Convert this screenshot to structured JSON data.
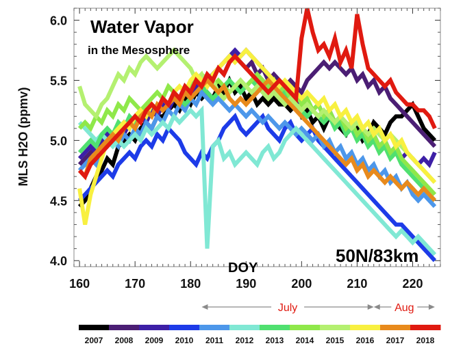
{
  "chart_data": {
    "type": "line",
    "title": "Water Vapor",
    "subtitle": "in the Mesosphere",
    "xlabel": "DOY",
    "ylabel": "MLS H2O (ppmv)",
    "location_label": "50N/83km",
    "xlim": [
      159,
      225
    ],
    "ylim": [
      3.95,
      6.1
    ],
    "xticks": [
      160,
      170,
      180,
      190,
      200,
      210,
      220
    ],
    "yticks": [
      4.0,
      4.5,
      5.0,
      5.5,
      6.0
    ],
    "ytick_labels": [
      "4.0",
      "4.5",
      "5.0",
      "5.5",
      "6.0"
    ],
    "month_annotations": [
      {
        "label": "July",
        "x_start": 182,
        "x_end": 213,
        "color": "#e01a10"
      },
      {
        "label": "Aug",
        "x_start": 213,
        "x_end": 224,
        "color": "#e01a10"
      }
    ],
    "series": [
      {
        "name": "2007",
        "color": "#000000",
        "x_start": 160,
        "x_end": 224,
        "values": [
          4.45,
          4.5,
          4.6,
          4.7,
          4.75,
          4.85,
          4.8,
          4.95,
          5.0,
          5.05,
          5.0,
          5.1,
          5.15,
          5.1,
          5.2,
          5.2,
          5.25,
          5.3,
          5.25,
          5.35,
          5.3,
          5.4,
          5.35,
          5.4,
          5.35,
          5.45,
          5.4,
          5.5,
          5.4,
          5.45,
          5.35,
          5.4,
          5.3,
          5.35,
          5.3,
          5.35,
          5.3,
          5.3,
          5.25,
          5.3,
          5.2,
          5.25,
          5.15,
          5.2,
          5.1,
          5.2,
          5.15,
          5.1,
          5.05,
          5.15,
          5.1,
          5.0,
          5.05,
          5.15,
          5.1,
          5.05,
          5.15,
          5.2,
          5.2,
          5.25,
          5.3,
          5.2,
          5.1,
          5.05,
          5.0
        ]
      },
      {
        "name": "2008",
        "color": "#4b1e74",
        "x_start": 160,
        "x_end": 224,
        "values": [
          4.8,
          4.85,
          4.9,
          4.95,
          5.0,
          5.05,
          5.0,
          5.1,
          5.15,
          5.1,
          5.2,
          5.25,
          5.2,
          5.3,
          5.25,
          5.35,
          5.3,
          5.4,
          5.35,
          5.45,
          5.4,
          5.5,
          5.45,
          5.5,
          5.55,
          5.6,
          5.55,
          5.65,
          5.7,
          5.65,
          5.6,
          5.65,
          5.55,
          5.6,
          5.5,
          5.55,
          5.5,
          5.45,
          5.5,
          5.45,
          5.4,
          5.5,
          5.55,
          5.6,
          5.65,
          5.6,
          5.65,
          5.6,
          5.55,
          5.6,
          5.5,
          5.55,
          5.45,
          5.5,
          5.4,
          5.45,
          5.35,
          5.3,
          5.25,
          5.2,
          5.15,
          5.1,
          5.05,
          5.0,
          4.95
        ]
      },
      {
        "name": "2009",
        "color": "#3d1fa6",
        "x_start": 160,
        "x_end": 224,
        "values": [
          4.85,
          4.9,
          4.95,
          4.9,
          5.0,
          5.05,
          5.0,
          5.1,
          5.05,
          5.15,
          5.1,
          5.2,
          5.15,
          5.25,
          5.2,
          5.3,
          5.25,
          5.35,
          5.3,
          5.4,
          5.35,
          5.45,
          5.4,
          5.5,
          5.55,
          5.6,
          5.65,
          5.7,
          5.75,
          5.7,
          5.75,
          5.7,
          5.65,
          5.6,
          5.55,
          5.5,
          5.45,
          5.4,
          5.35,
          5.3,
          5.35,
          5.3,
          5.25,
          5.3,
          5.2,
          5.25,
          5.15,
          5.2,
          5.1,
          5.15,
          5.05,
          5.1,
          5.0,
          5.05,
          4.95,
          5.0,
          4.9,
          4.95,
          4.85,
          4.9,
          4.85,
          4.8,
          4.85,
          4.8,
          4.9
        ]
      },
      {
        "name": "2010",
        "color": "#1d3be8",
        "x_start": 160,
        "x_end": 224,
        "values": [
          4.5,
          4.55,
          4.6,
          4.65,
          4.7,
          4.75,
          4.7,
          4.8,
          4.85,
          4.9,
          4.85,
          4.95,
          5.0,
          4.95,
          5.05,
          5.0,
          5.1,
          5.05,
          5.0,
          4.9,
          4.85,
          4.8,
          4.9,
          4.85,
          4.95,
          5.0,
          5.1,
          5.15,
          5.2,
          5.1,
          5.05,
          5.1,
          5.15,
          5.2,
          5.1,
          5.05,
          5.0,
          5.1,
          5.15,
          5.05,
          5.0,
          5.05,
          5.1,
          5.0,
          4.95,
          4.9,
          4.85,
          4.8,
          4.75,
          4.7,
          4.65,
          4.6,
          4.55,
          4.5,
          4.45,
          4.4,
          4.35,
          4.3,
          4.3,
          4.25,
          4.2,
          4.15,
          4.1,
          4.05,
          4.0
        ]
      },
      {
        "name": "2011",
        "color": "#4d97ea",
        "x_start": 160,
        "x_end": 224,
        "values": [
          4.75,
          4.8,
          4.85,
          4.8,
          4.9,
          4.95,
          5.0,
          4.95,
          5.05,
          5.0,
          5.1,
          5.05,
          5.15,
          5.1,
          5.2,
          5.15,
          5.25,
          5.2,
          5.3,
          5.25,
          5.35,
          5.3,
          5.4,
          5.35,
          5.3,
          5.35,
          5.3,
          5.25,
          5.3,
          5.25,
          5.2,
          5.25,
          5.2,
          5.15,
          5.2,
          5.15,
          5.1,
          5.15,
          5.1,
          5.05,
          5.1,
          5.05,
          5.0,
          5.05,
          4.95,
          5.0,
          4.9,
          4.95,
          4.85,
          4.9,
          4.8,
          4.85,
          4.75,
          4.8,
          4.7,
          4.75,
          4.65,
          4.7,
          4.6,
          4.65,
          4.55,
          4.5,
          4.55,
          4.5,
          4.45
        ]
      },
      {
        "name": "2012",
        "color": "#80e8d4",
        "x_start": 160,
        "x_end": 224,
        "values": [
          5.15,
          5.1,
          5.05,
          5.0,
          5.05,
          5.0,
          4.95,
          5.0,
          4.95,
          5.0,
          5.05,
          5.0,
          5.1,
          5.05,
          5.1,
          5.15,
          5.1,
          5.2,
          5.15,
          5.2,
          5.25,
          5.2,
          5.25,
          4.1,
          4.95,
          5.0,
          4.85,
          4.9,
          4.8,
          4.85,
          4.9,
          4.85,
          4.8,
          4.9,
          4.95,
          4.85,
          4.9,
          5.0,
          5.05,
          5.1,
          5.05,
          5.0,
          4.95,
          4.9,
          4.85,
          4.8,
          4.75,
          4.7,
          4.65,
          4.6,
          4.55,
          4.5,
          4.45,
          4.4,
          4.35,
          4.3,
          4.25,
          4.2,
          4.25,
          4.2,
          4.15,
          4.2,
          4.15,
          4.1,
          4.05
        ]
      },
      {
        "name": "2013",
        "color": "#50e070",
        "x_start": 160,
        "x_end": 224,
        "values": [
          4.9,
          4.95,
          5.0,
          4.95,
          5.05,
          5.1,
          5.05,
          5.15,
          5.1,
          5.2,
          5.15,
          5.25,
          5.2,
          5.3,
          5.25,
          5.35,
          5.3,
          5.4,
          5.35,
          5.3,
          5.35,
          5.4,
          5.45,
          5.4,
          5.35,
          5.4,
          5.45,
          5.5,
          5.45,
          5.4,
          5.45,
          5.5,
          5.45,
          5.4,
          5.45,
          5.4,
          5.35,
          5.4,
          5.35,
          5.3,
          5.25,
          5.2,
          5.25,
          5.2,
          5.15,
          5.2,
          5.1,
          5.15,
          5.05,
          5.1,
          5.0,
          5.05,
          4.95,
          5.0,
          4.9,
          4.95,
          4.85,
          4.9,
          4.8,
          4.75,
          4.7,
          4.65,
          4.6,
          4.55,
          4.5
        ]
      },
      {
        "name": "2014",
        "color": "#8fe84a",
        "x_start": 160,
        "x_end": 224,
        "values": [
          5.1,
          5.15,
          5.1,
          5.2,
          5.15,
          5.25,
          5.2,
          5.3,
          5.25,
          5.35,
          5.3,
          5.25,
          5.3,
          5.35,
          5.4,
          5.35,
          5.45,
          5.4,
          5.35,
          5.4,
          5.45,
          5.5,
          5.55,
          5.5,
          5.45,
          5.5,
          5.45,
          5.4,
          5.45,
          5.5,
          5.45,
          5.5,
          5.55,
          5.5,
          5.45,
          5.5,
          5.4,
          5.45,
          5.35,
          5.4,
          5.3,
          5.35,
          5.25,
          5.3,
          5.2,
          5.25,
          5.15,
          5.2,
          5.1,
          5.15,
          5.05,
          5.1,
          5.0,
          5.05,
          4.95,
          5.0,
          4.9,
          4.95,
          4.85,
          4.8,
          4.75,
          4.7,
          4.65,
          4.6,
          4.55
        ]
      },
      {
        "name": "2015",
        "color": "#b4f070",
        "x_start": 160,
        "x_end": 224,
        "values": [
          5.45,
          5.3,
          5.25,
          5.2,
          5.3,
          5.35,
          5.45,
          5.55,
          5.5,
          5.6,
          5.55,
          5.65,
          5.7,
          5.65,
          5.6,
          5.65,
          5.7,
          5.75,
          5.7,
          5.65,
          5.6,
          5.5,
          5.55,
          5.45,
          5.5,
          5.4,
          5.35,
          5.4,
          5.45,
          5.5,
          5.45,
          5.4,
          5.45,
          5.4,
          5.35,
          5.4,
          5.35,
          5.3,
          5.35,
          5.3,
          5.25,
          5.3,
          5.25,
          5.2,
          5.25,
          5.2,
          5.15,
          5.2,
          5.15,
          5.1,
          5.15,
          5.1,
          5.05,
          5.1,
          5.05,
          5.0,
          5.05,
          5.0,
          4.95,
          4.9,
          4.85,
          4.8,
          4.75,
          4.7,
          4.65
        ]
      },
      {
        "name": "2016",
        "color": "#f8f040",
        "x_start": 160,
        "x_end": 224,
        "values": [
          4.6,
          4.3,
          4.55,
          4.7,
          4.85,
          5.0,
          5.05,
          5.1,
          5.15,
          5.1,
          5.2,
          5.25,
          5.2,
          5.3,
          5.25,
          5.35,
          5.3,
          5.4,
          5.45,
          5.4,
          5.5,
          5.55,
          5.5,
          5.45,
          5.55,
          5.6,
          5.65,
          5.7,
          5.65,
          5.7,
          5.75,
          5.7,
          5.65,
          5.6,
          5.55,
          5.5,
          5.45,
          5.5,
          5.45,
          5.4,
          5.35,
          5.4,
          5.35,
          5.3,
          5.35,
          5.25,
          5.3,
          5.2,
          5.25,
          5.15,
          5.2,
          5.1,
          5.15,
          5.05,
          5.1,
          5.0,
          5.05,
          4.95,
          5.0,
          4.9,
          4.85,
          4.8,
          4.75,
          4.7,
          4.65
        ]
      },
      {
        "name": "2017",
        "color": "#e88a1c",
        "x_start": 160,
        "x_end": 224,
        "values": [
          4.75,
          4.7,
          4.85,
          4.9,
          4.95,
          5.0,
          5.05,
          5.0,
          5.1,
          5.15,
          5.1,
          5.2,
          5.25,
          5.2,
          5.3,
          5.25,
          5.3,
          5.35,
          5.3,
          5.4,
          5.35,
          5.4,
          5.45,
          5.5,
          5.45,
          5.4,
          5.45,
          5.35,
          5.3,
          5.35,
          5.3,
          5.35,
          5.4,
          5.45,
          5.5,
          5.45,
          5.4,
          5.35,
          5.3,
          5.25,
          5.2,
          5.15,
          5.1,
          5.05,
          5.0,
          4.95,
          4.9,
          4.85,
          4.8,
          4.85,
          4.75,
          4.8,
          4.7,
          4.75,
          4.7,
          4.65,
          4.7,
          4.65,
          4.6,
          4.65,
          4.6,
          4.55,
          4.6,
          4.55,
          4.5
        ]
      },
      {
        "name": "2018",
        "color": "#e01a10",
        "x_start": 160,
        "x_end": 224,
        "values": [
          4.75,
          4.7,
          4.8,
          4.85,
          4.9,
          4.95,
          5.0,
          5.05,
          5.1,
          5.15,
          5.2,
          5.15,
          5.25,
          5.3,
          5.25,
          5.35,
          5.3,
          5.4,
          5.35,
          5.45,
          5.4,
          5.5,
          5.45,
          5.55,
          5.5,
          5.6,
          5.55,
          5.65,
          5.7,
          5.65,
          5.6,
          5.55,
          5.5,
          5.45,
          5.4,
          5.45,
          5.5,
          5.45,
          5.4,
          5.35,
          5.85,
          6.1,
          5.9,
          5.75,
          5.8,
          5.7,
          5.85,
          5.65,
          5.75,
          5.6,
          6.05,
          5.8,
          5.6,
          5.55,
          5.5,
          5.45,
          5.5,
          5.4,
          5.35,
          5.3,
          5.3,
          5.25,
          5.25,
          5.2,
          5.1
        ]
      }
    ]
  }
}
